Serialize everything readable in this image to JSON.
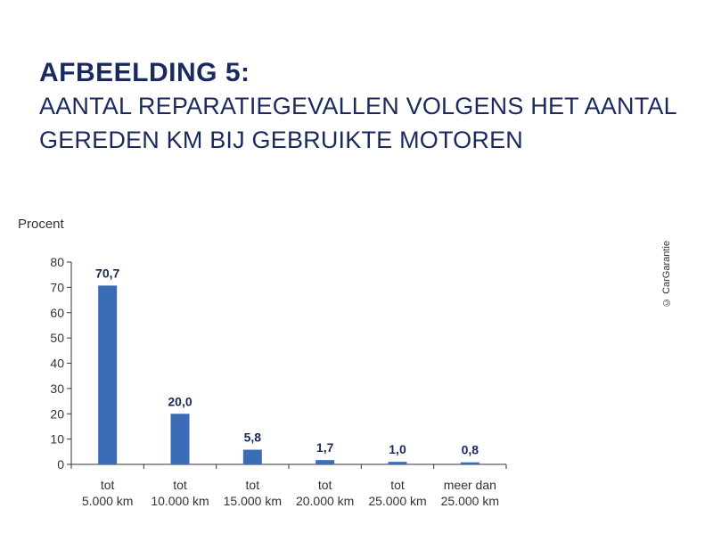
{
  "title": {
    "main": "AFBEELDING 5:",
    "line1": "AANTAL REPARATIEGEVALLEN VOLGENS HET AANTAL",
    "line2": "GEREDEN KM BIJ GEBRUIKTE MOTOREN"
  },
  "credit": "© CarGarantie",
  "colors": {
    "bar": "#3a6db5",
    "title": "#1a2a5e",
    "axis": "#333333"
  },
  "chart_data": {
    "type": "bar",
    "ylabel": "Procent",
    "xlabel": "",
    "ylim": [
      0,
      80
    ],
    "yticks": [
      0,
      10,
      20,
      30,
      40,
      50,
      60,
      70,
      80
    ],
    "categories": [
      [
        "tot",
        "5.000 km"
      ],
      [
        "tot",
        "10.000 km"
      ],
      [
        "tot",
        "15.000 km"
      ],
      [
        "tot",
        "20.000 km"
      ],
      [
        "tot",
        "25.000 km"
      ],
      [
        "meer dan",
        "25.000 km"
      ]
    ],
    "values": [
      70.7,
      20.0,
      5.8,
      1.7,
      1.0,
      0.8
    ],
    "data_labels": [
      "70,7",
      "20,0",
      "5,8",
      "1,7",
      "1,0",
      "0,8"
    ],
    "grid": false,
    "legend": "none"
  }
}
